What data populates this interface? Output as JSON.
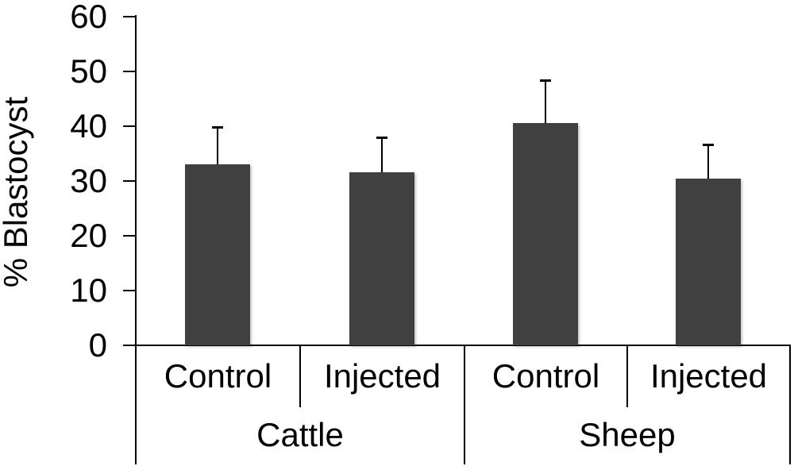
{
  "figure": {
    "background_color": "#ffffff",
    "bar_color": "#404040",
    "line_color": "#000000",
    "text_color": "#000000"
  },
  "chart_data": {
    "type": "bar",
    "title": "",
    "xlabel": "",
    "ylabel": "% Blastocyst",
    "ylim": [
      0,
      60
    ],
    "yticks": [
      0,
      10,
      20,
      30,
      40,
      50,
      60
    ],
    "grid": false,
    "legend": false,
    "error_bars": "upper only",
    "categories": [
      "Cattle Control",
      "Cattle Injected",
      "Sheep Control",
      "Sheep Injected"
    ],
    "values": [
      33.0,
      31.6,
      40.6,
      30.4
    ],
    "errors": [
      6.8,
      6.4,
      7.8,
      6.3
    ],
    "groups": [
      {
        "label": "Cattle",
        "categories": [
          "Control",
          "Injected"
        ],
        "values": [
          33.0,
          31.6
        ],
        "errors": [
          6.8,
          6.4
        ]
      },
      {
        "label": "Sheep",
        "categories": [
          "Control",
          "Injected"
        ],
        "values": [
          40.6,
          30.4
        ],
        "errors": [
          7.8,
          6.3
        ]
      }
    ]
  }
}
